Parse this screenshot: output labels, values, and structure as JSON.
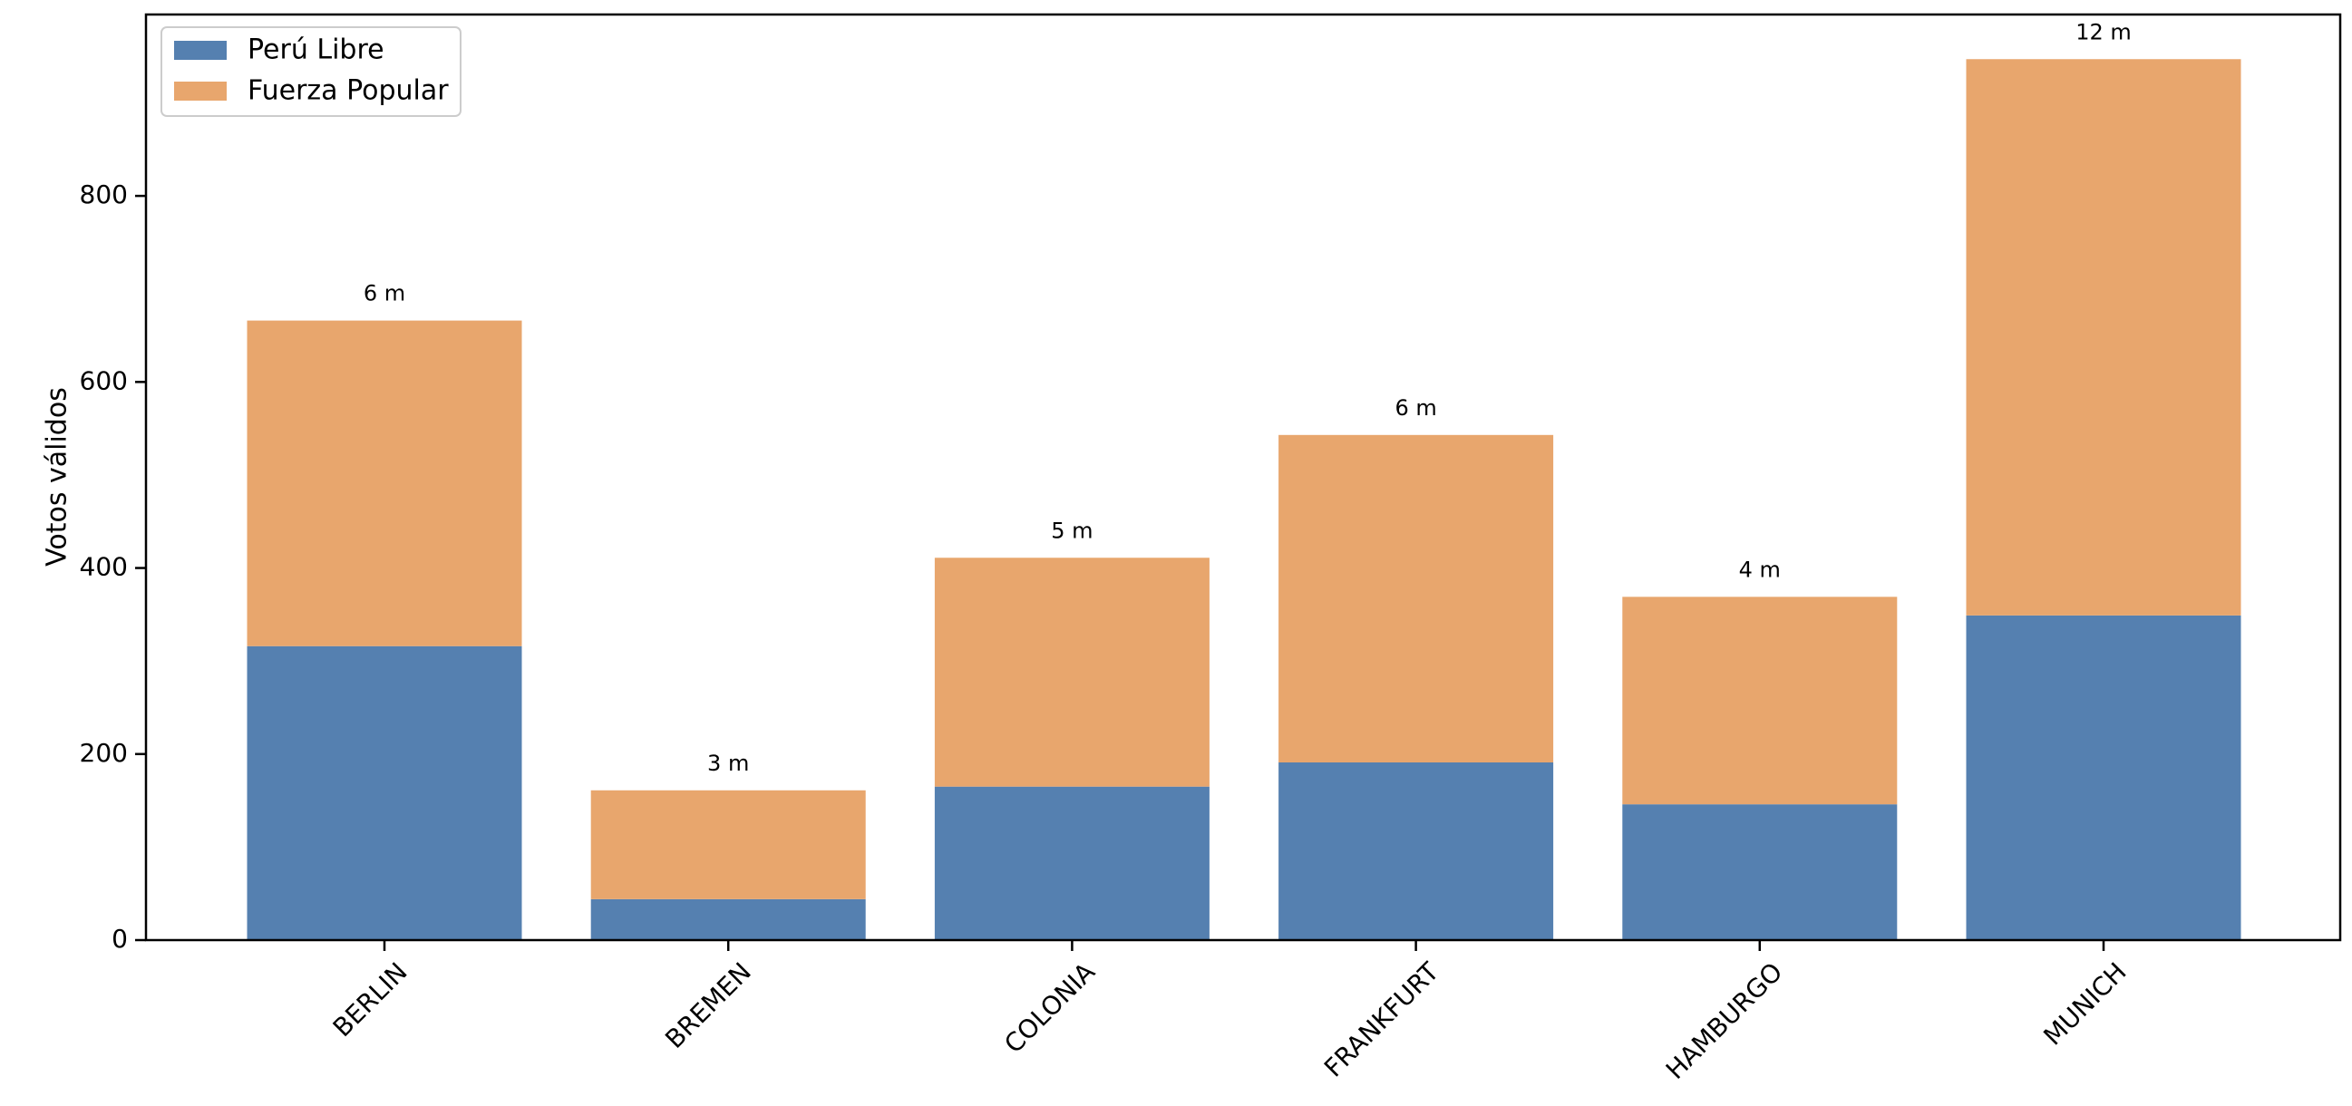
{
  "chart_data": {
    "type": "bar",
    "stacked": true,
    "categories": [
      "BERLIN",
      "BREMEN",
      "COLONIA",
      "FRANKFURT",
      "HAMBURGO",
      "MUNICH"
    ],
    "series": [
      {
        "name": "Perú Libre",
        "values": [
          316,
          44,
          165,
          191,
          146,
          349
        ],
        "color": "#5580b0"
      },
      {
        "name": "Fuerza Popular",
        "values": [
          350,
          117,
          246,
          352,
          223,
          598
        ],
        "color": "#e8a66d"
      }
    ],
    "bar_labels": [
      "6 m",
      "3 m",
      "5 m",
      "6 m",
      "4 m",
      "12 m"
    ],
    "ylabel": "Votos válidos",
    "xlabel": "",
    "ylim": [
      0,
      995
    ],
    "yticks": [
      0,
      200,
      400,
      600,
      800
    ],
    "grid": false,
    "legend_position": "top-left"
  }
}
